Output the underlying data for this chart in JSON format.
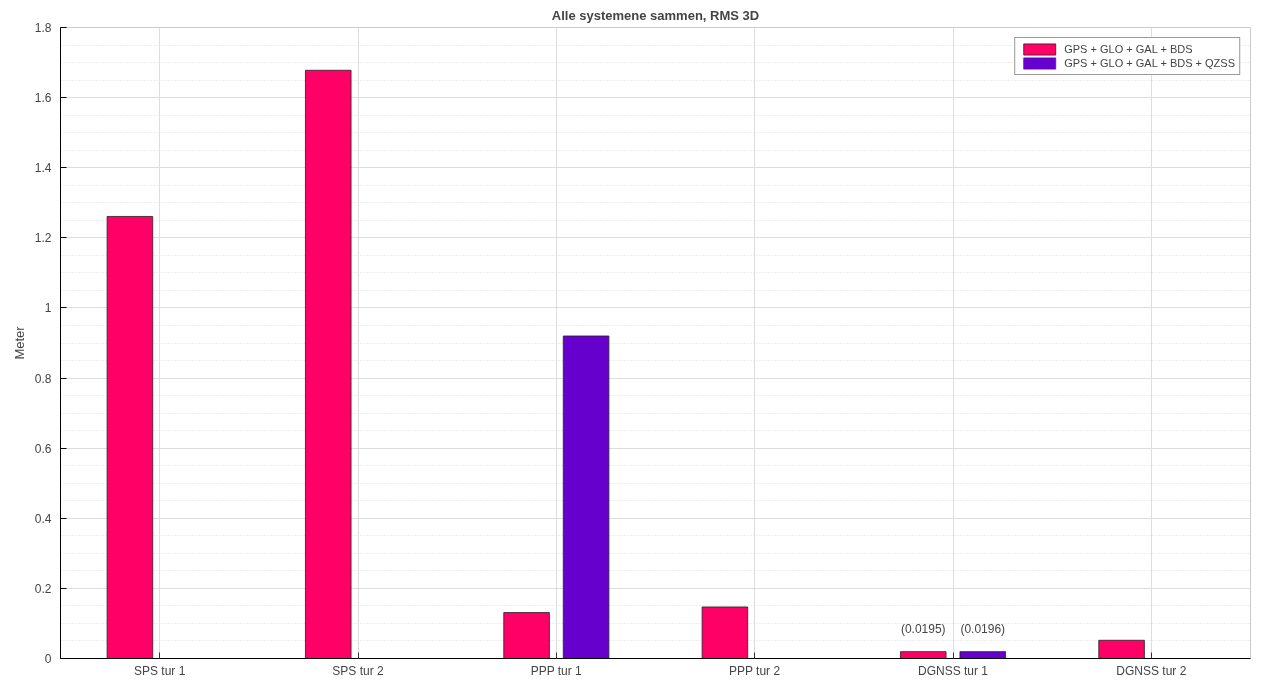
{
  "chart_data": {
    "type": "bar",
    "title": "Alle systemene sammen, RMS 3D",
    "ylabel": "Meter",
    "categories": [
      "SPS tur 1",
      "SPS tur 2",
      "PPP tur 1",
      "PPP tur 2",
      "DGNSS tur 1",
      "DGNSS tur 2"
    ],
    "series": [
      {
        "name": "GPS + GLO + GAL + BDS",
        "color": "#ff0066",
        "values": [
          1.261,
          1.678,
          0.131,
          0.147,
          0.0195,
          0.052
        ],
        "value_labels": [
          null,
          null,
          null,
          null,
          "(0.0195)",
          null
        ]
      },
      {
        "name": "GPS + GLO + GAL + BDS + QZSS",
        "color": "#6600cc",
        "values": [
          0,
          0,
          0.92,
          0,
          0.0196,
          0
        ],
        "value_labels": [
          null,
          null,
          null,
          null,
          "(0.0196)",
          null
        ]
      }
    ],
    "ylim": [
      0,
      1.8
    ],
    "yticks": [
      0,
      0.2,
      0.4,
      0.6,
      0.8,
      1,
      1.2,
      1.4,
      1.6,
      1.8
    ],
    "grid": true,
    "legend": "top right"
  }
}
